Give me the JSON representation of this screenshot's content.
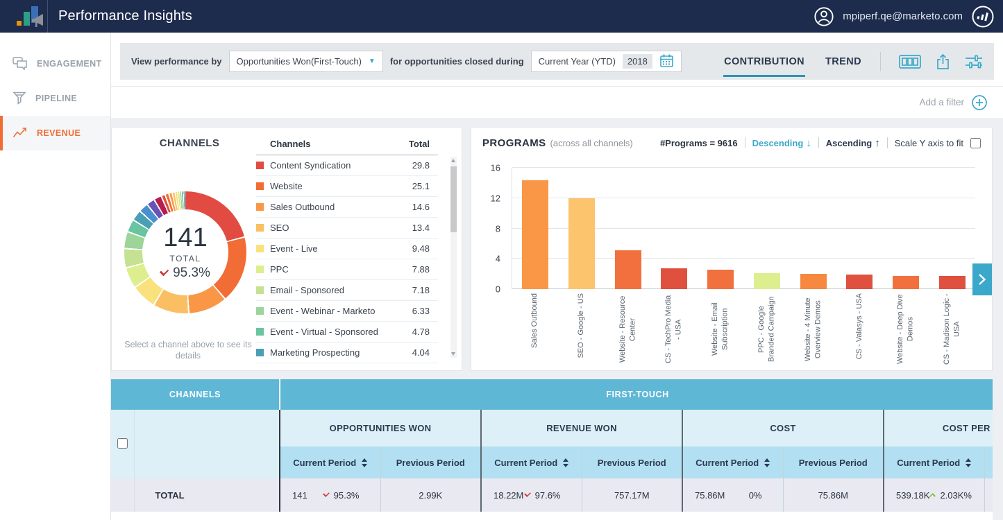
{
  "header": {
    "app_title": "Performance Insights",
    "user_email": "mpiperf.qe@marketo.com"
  },
  "sidebar": {
    "items": [
      {
        "label": "ENGAGEMENT",
        "icon": "chat-bubbles-icon",
        "active": false
      },
      {
        "label": "PIPELINE",
        "icon": "funnel-icon",
        "active": false
      },
      {
        "label": "REVENUE",
        "icon": "line-chart-icon",
        "active": true
      }
    ]
  },
  "toolbar": {
    "view_by_label": "View performance by",
    "view_by_value": "Opportunities Won(First-Touch)",
    "closed_during_label": "for opportunities closed during",
    "period_value": "Current Year (YTD)",
    "period_year": "2018",
    "tabs": [
      {
        "label": "CONTRIBUTION",
        "active": true
      },
      {
        "label": "TREND",
        "active": false
      }
    ]
  },
  "filter_bar": {
    "add_filter_label": "Add a filter"
  },
  "channels_panel": {
    "title": "CHANNELS",
    "donut_center": {
      "value": "141",
      "label": "TOTAL",
      "change": "95.3%",
      "change_direction": "down"
    },
    "hint": "Select a channel above to see its details",
    "list": {
      "header_channel": "Channels",
      "header_total": "Total",
      "rows": [
        {
          "name": "Content Syndication",
          "total": "29.8",
          "color": "#e14b41"
        },
        {
          "name": "Website",
          "total": "25.1",
          "color": "#f26c35"
        },
        {
          "name": "Sales Outbound",
          "total": "14.6",
          "color": "#f99746"
        },
        {
          "name": "SEO",
          "total": "13.4",
          "color": "#f9bf62"
        },
        {
          "name": "Event - Live",
          "total": "9.48",
          "color": "#f9e27d"
        },
        {
          "name": "PPC",
          "total": "7.88",
          "color": "#dcee8e"
        },
        {
          "name": "Email - Sponsored",
          "total": "7.18",
          "color": "#c4e292"
        },
        {
          "name": "Event - Webinar - Marketo",
          "total": "6.33",
          "color": "#9dd49a"
        },
        {
          "name": "Event - Virtual - Sponsored",
          "total": "4.78",
          "color": "#68c4a1"
        },
        {
          "name": "Marketing Prospecting",
          "total": "4.04",
          "color": "#4a9fb5"
        }
      ]
    }
  },
  "programs_panel": {
    "title": "PROGRAMS",
    "subtitle": "(across all channels)",
    "programs_count": "#Programs = 9616",
    "sort_descending": "Descending",
    "sort_ascending": "Ascending",
    "scale_y_label": "Scale Y axis to fit"
  },
  "chart_data": [
    {
      "type": "pie",
      "title": "CHANNELS",
      "center_value": 141,
      "center_label": "TOTAL",
      "center_change_pct": -95.3,
      "segments": [
        {
          "label": "Content Syndication",
          "value": 29.8,
          "color": "#e14b41"
        },
        {
          "label": "Website",
          "value": 25.1,
          "color": "#f26c35"
        },
        {
          "label": "Sales Outbound",
          "value": 14.6,
          "color": "#f99746"
        },
        {
          "label": "SEO",
          "value": 13.4,
          "color": "#f9bf62"
        },
        {
          "label": "Event - Live",
          "value": 9.48,
          "color": "#f9e27d"
        },
        {
          "label": "PPC",
          "value": 7.88,
          "color": "#dcee8e"
        },
        {
          "label": "Email - Sponsored",
          "value": 7.18,
          "color": "#c4e292"
        },
        {
          "label": "Event - Webinar - Marketo",
          "value": 6.33,
          "color": "#9dd49a"
        },
        {
          "label": "Event - Virtual - Sponsored",
          "value": 4.78,
          "color": "#68c4a1"
        },
        {
          "label": "Marketing Prospecting",
          "value": 4.04,
          "color": "#4a9fb5"
        },
        {
          "label": "other",
          "value": 3.6,
          "color": "#4a90d0"
        },
        {
          "label": "other",
          "value": 3.1,
          "color": "#6a51b5"
        },
        {
          "label": "other",
          "value": 2.9,
          "color": "#b51e50"
        },
        {
          "label": "other",
          "value": 1.5,
          "color": "#e0503f"
        },
        {
          "label": "other",
          "value": 1.4,
          "color": "#f07030"
        },
        {
          "label": "other",
          "value": 1.2,
          "color": "#f89a46"
        },
        {
          "label": "other",
          "value": 1.0,
          "color": "#fbc05e"
        },
        {
          "label": "other",
          "value": 0.9,
          "color": "#f7e07a"
        },
        {
          "label": "other",
          "value": 0.8,
          "color": "#d8ea86"
        },
        {
          "label": "other",
          "value": 0.7,
          "color": "#a5d79a"
        },
        {
          "label": "other",
          "value": 0.71,
          "color": "#6cc3a3"
        },
        {
          "label": "other",
          "value": 0.6,
          "color": "#55aec0"
        }
      ]
    },
    {
      "type": "bar",
      "title": "PROGRAMS (across all channels)",
      "xlabel": "",
      "ylabel": "",
      "ylim": [
        0,
        16
      ],
      "yticks": [
        0,
        4,
        8,
        12,
        16
      ],
      "categories": [
        "Sales Outbound",
        "SEO - Google - US",
        "Website - Resource Center",
        "CS - TechPro Media - USA",
        "Website - Email Subscription",
        "PPC - Google Branded Campaign",
        "Website - 4 Minute Overview Demos",
        "CS - Valasys - USA",
        "Website - Deep Dive Demos",
        "CS - Madison Logic - USA"
      ],
      "values": [
        14.4,
        12.0,
        5.1,
        2.7,
        2.6,
        2.1,
        2.05,
        1.9,
        1.75,
        1.75
      ],
      "colors": [
        "#f99746",
        "#fbc46d",
        "#f2703e",
        "#e0503f",
        "#f2703e",
        "#dcee8e",
        "#f6883f",
        "#e0503f",
        "#f2703e",
        "#e0503f"
      ]
    }
  ],
  "summary_table": {
    "channels_header": "CHANNELS",
    "first_touch_header": "FIRST-TOUCH",
    "groups": [
      "OPPORTUNITIES WON",
      "REVENUE WON",
      "COST",
      "COST PER OPPOR"
    ],
    "current_period_label": "Current Period",
    "previous_period_label": "Previous Period",
    "total_row": {
      "label": "TOTAL",
      "groups": [
        {
          "current": "141",
          "change": "95.3%",
          "change_direction": "down",
          "previous": "2.99K"
        },
        {
          "current": "18.22M",
          "change": "97.6%",
          "change_direction": "down",
          "previous": "757.17M"
        },
        {
          "current": "75.86M",
          "change": "0%",
          "change_direction": "none",
          "previous": "75.86M"
        },
        {
          "current": "539.18K",
          "change": "2.03K%",
          "change_direction": "up",
          "previous": ""
        }
      ]
    }
  },
  "icons": {
    "user_avatar": "person-in-circle",
    "brand": "marketo-bars-in-circle",
    "cards_view": "cards-view",
    "export": "share-up-arrow",
    "settings": "sliders",
    "calendar": "calendar",
    "add_filter": "circle-plus",
    "next_page": "chevron-right",
    "sort_desc": "down-arrow",
    "sort_asc": "up-arrow"
  },
  "colors": {
    "header_navy": "#1d2b4c",
    "accent_teal": "#3ba8c9",
    "active_orange": "#f26c35",
    "table_header_teal": "#5fb7d6",
    "negative_red": "#cf3a3a",
    "positive_green": "#7cc142"
  }
}
